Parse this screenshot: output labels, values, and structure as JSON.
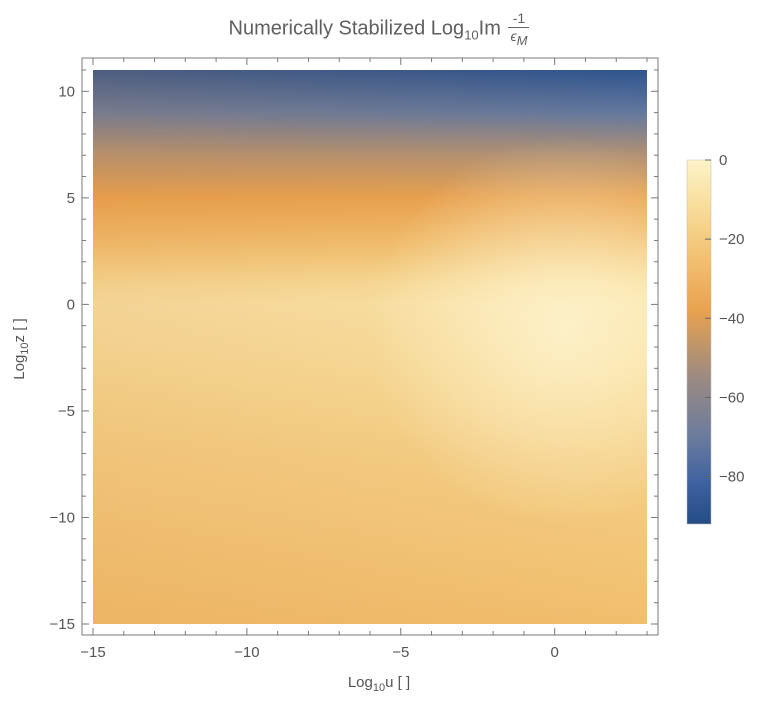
{
  "chart_data": {
    "type": "heatmap",
    "title": {
      "text": "Numerically Stabilized Log",
      "subscript": "10",
      "suffix": "Im",
      "fraction_numerator": "-1",
      "fraction_denominator": "ϵ",
      "fraction_denominator_subscript": "M"
    },
    "xlabel": {
      "base": "Log",
      "subscript": "10",
      "rest": "u [ ]"
    },
    "ylabel": {
      "base": "Log",
      "subscript": "10",
      "rest": "z [ ]"
    },
    "xlim": [
      -15,
      3
    ],
    "ylim": [
      -15,
      11
    ],
    "xticks": [
      -15,
      -10,
      -5,
      0
    ],
    "xtick_labels": [
      "−15",
      "−10",
      "−5",
      "0"
    ],
    "yticks": [
      10,
      5,
      0,
      -5,
      -10,
      -15
    ],
    "ytick_labels": [
      "10",
      "5",
      "0",
      "−5",
      "−10",
      "−15"
    ],
    "colorbar": {
      "range": [
        -92,
        0
      ],
      "ticks": [
        0,
        -20,
        -40,
        -60,
        -80
      ],
      "tick_labels": [
        "0",
        "−20",
        "−40",
        "−60",
        "−80"
      ],
      "colormap": [
        {
          "value": 0,
          "color": "#fdf3c8"
        },
        {
          "value": -12,
          "color": "#f8dd9a"
        },
        {
          "value": -25,
          "color": "#f2c070"
        },
        {
          "value": -38,
          "color": "#e9a24f"
        },
        {
          "value": -55,
          "color": "#9b8a82"
        },
        {
          "value": -70,
          "color": "#6b7c9e"
        },
        {
          "value": -82,
          "color": "#3d61a0"
        },
        {
          "value": -92,
          "color": "#244c84"
        }
      ]
    },
    "field_profile_by_log10z": [
      {
        "z": 11,
        "value": -88
      },
      {
        "z": 9,
        "value": -72
      },
      {
        "z": 7,
        "value": -50
      },
      {
        "z": 5,
        "value": -38
      },
      {
        "z": 3,
        "value": -26
      },
      {
        "z": 1,
        "value": -12
      },
      {
        "z": 0,
        "value": -8
      },
      {
        "z": -3,
        "value": -12
      },
      {
        "z": -7,
        "value": -18
      },
      {
        "z": -11,
        "value": -22
      },
      {
        "z": -15,
        "value": -26
      }
    ],
    "grid": false
  }
}
